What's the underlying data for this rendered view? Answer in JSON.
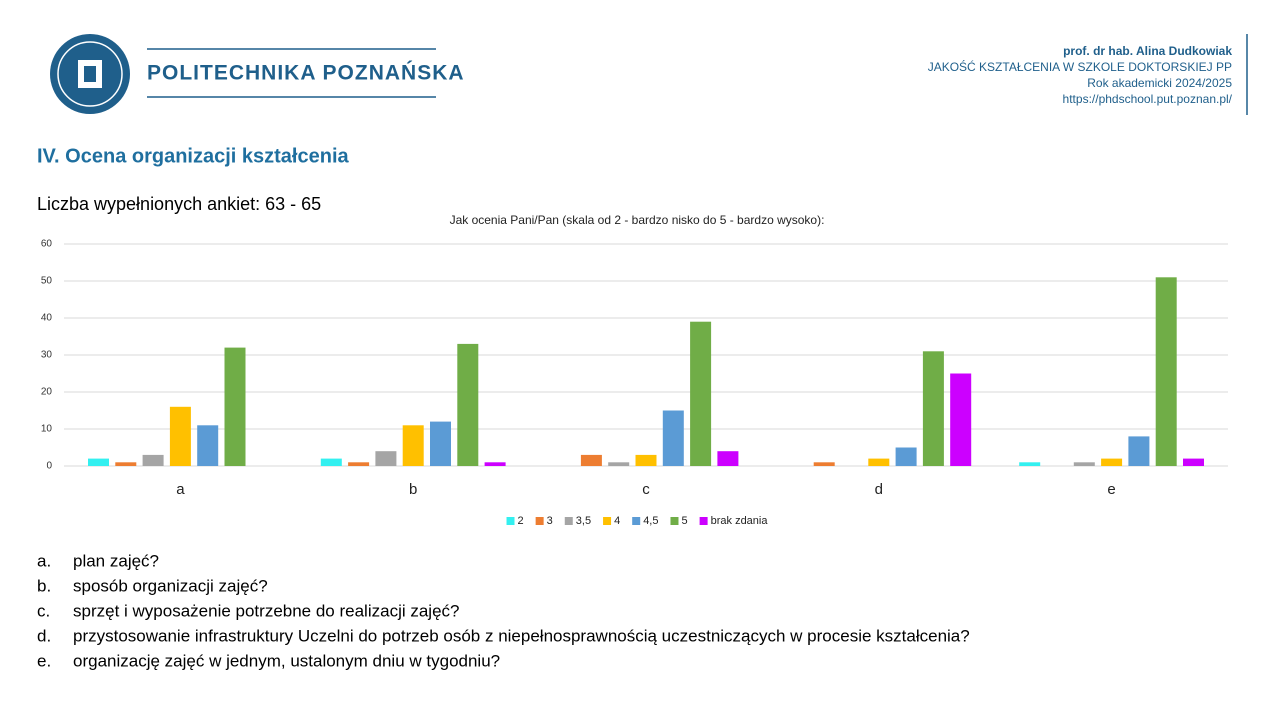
{
  "header": {
    "logo_text": "POLITECHNIKA POZNAŃSKA",
    "author": "prof. dr hab. Alina Dudkowiak",
    "program": "JAKOŚĆ KSZTAŁCENIA  W SZKOLE DOKTORSKIEJ  PP",
    "year": "Rok akademicki 2024/2025",
    "url": "https://phdschool.put.poznan.pl/"
  },
  "section_title": "IV. Ocena organizacji kształcenia",
  "survey_count": "Liczba wypełnionych ankiet: 63 - 65",
  "chart_data": {
    "type": "bar",
    "title": "Jak ocenia Pani/Pan (skala od 2 - bardzo nisko do 5 - bardzo wysoko):",
    "categories": [
      "a",
      "b",
      "c",
      "d",
      "e"
    ],
    "series": [
      {
        "name": "2",
        "color": "#33f0f0",
        "values": [
          2,
          2,
          0,
          0,
          1
        ]
      },
      {
        "name": "3",
        "color": "#ed7d31",
        "values": [
          1,
          1,
          3,
          1,
          0
        ]
      },
      {
        "name": "3,5",
        "color": "#a5a5a5",
        "values": [
          3,
          4,
          1,
          0,
          1
        ]
      },
      {
        "name": "4",
        "color": "#ffc000",
        "values": [
          16,
          11,
          3,
          2,
          2
        ]
      },
      {
        "name": "4,5",
        "color": "#5b9bd5",
        "values": [
          11,
          12,
          15,
          5,
          8
        ]
      },
      {
        "name": "5",
        "color": "#70ad47",
        "values": [
          32,
          33,
          39,
          31,
          51
        ]
      },
      {
        "name": "brak zdania",
        "color": "#cc00ff",
        "values": [
          0,
          1,
          4,
          25,
          2
        ]
      }
    ],
    "ylim": [
      0,
      60
    ],
    "yticks": [
      0,
      10,
      20,
      30,
      40,
      50,
      60
    ],
    "grid": true,
    "legend": "bottom"
  },
  "questions": [
    {
      "letter": "a.",
      "text": "plan zajęć?"
    },
    {
      "letter": "b.",
      "text": "sposób organizacji zajęć?"
    },
    {
      "letter": "c.",
      "text": "sprzęt i wyposażenie potrzebne do realizacji zajęć?"
    },
    {
      "letter": "d.",
      "text": "przystosowanie infrastruktury Uczelni do potrzeb osób z niepełnosprawnością uczestniczących w procesie kształcenia?"
    },
    {
      "letter": "e.",
      "text": "organizację zajęć w jednym, ustalonym dniu w tygodniu?"
    }
  ]
}
